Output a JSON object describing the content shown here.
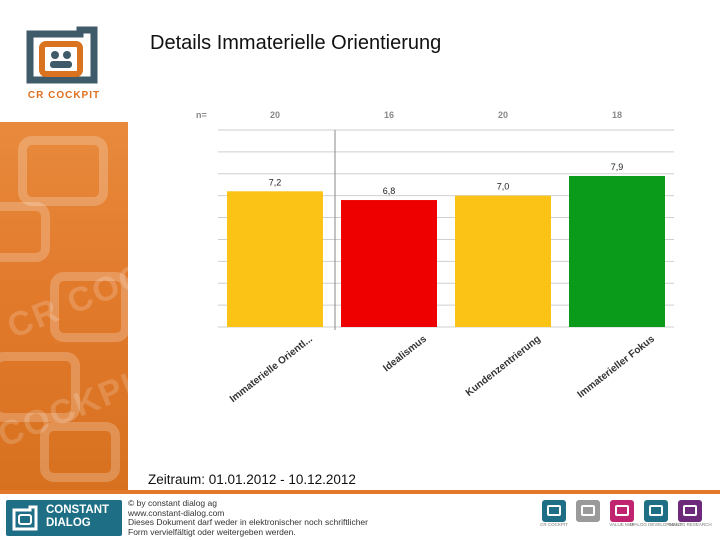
{
  "slide": {
    "title": "Details Immaterielle Orientierung",
    "period": "Zeitraum: 01.01.2012 - 10.12.2012",
    "brand": "CR COCKPIT",
    "brand_watermark_1": "CR COC",
    "brand_watermark_2": "COCKPIT"
  },
  "footer": {
    "company_line_1": "CONSTANT",
    "company_line_2": "DIALOG",
    "copyright": "© by constant dialog ag",
    "website": "www.constant-dialog.com",
    "notice_1": "Dieses Dokument darf weder in elektronischer noch schriftlicher",
    "notice_2": "Form vervielfältigt oder weitergeben werden.",
    "icons": [
      {
        "label": "CR COCKPIT",
        "color": "#1e6f86"
      },
      {
        "label": "",
        "color": "#9a9a9a"
      },
      {
        "label": "VALUE MAP",
        "color": "#c0246f"
      },
      {
        "label": "DIALOG DEVELOPMENT",
        "color": "#1e6f86"
      },
      {
        "label": "DIALOG RESEARCH",
        "color": "#6d2a7a"
      }
    ]
  },
  "chart_data": {
    "type": "bar",
    "n_label": "n=",
    "categories": [
      "Immaterielle Orientl...",
      "Idealismus",
      "Kundenzentrierung",
      "Immaterieller Fokus"
    ],
    "n_values": [
      20,
      16,
      20,
      18
    ],
    "values": [
      7.2,
      6.8,
      7.0,
      7.9
    ],
    "value_labels": [
      "7,2",
      "6,8",
      "7,0",
      "7,9"
    ],
    "colors": [
      "#fcc317",
      "#ef0000",
      "#fcc317",
      "#0a9b1a"
    ],
    "ylim": [
      1,
      10
    ],
    "gridlines": 10,
    "title": "",
    "xlabel": "",
    "ylabel": ""
  }
}
